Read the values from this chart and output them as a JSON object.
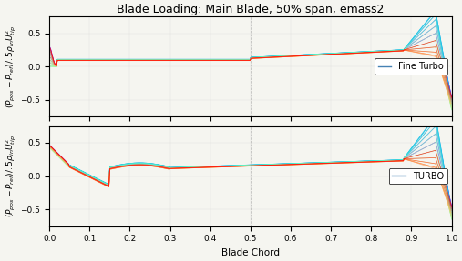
{
  "title": "Blade Loading: Main Blade, 50% span, emass2",
  "xlabel": "Blade Chord",
  "ylabel": "(P_pos-P_ref)/.5ρ_in U_tip^2",
  "xlim": [
    0,
    1
  ],
  "ylim": [
    -0.75,
    0.75
  ],
  "xticks": [
    0,
    0.1,
    0.2,
    0.3,
    0.4,
    0.5,
    0.6,
    0.7,
    0.8,
    0.9,
    1
  ],
  "yticks": [
    -0.5,
    0,
    0.5
  ],
  "legend1": "Fine Turbo",
  "legend2": "TURBO",
  "n_lines": 20,
  "background_color": "#f5f5f0",
  "title_fontsize": 9,
  "label_fontsize": 7,
  "tick_fontsize": 6.5
}
